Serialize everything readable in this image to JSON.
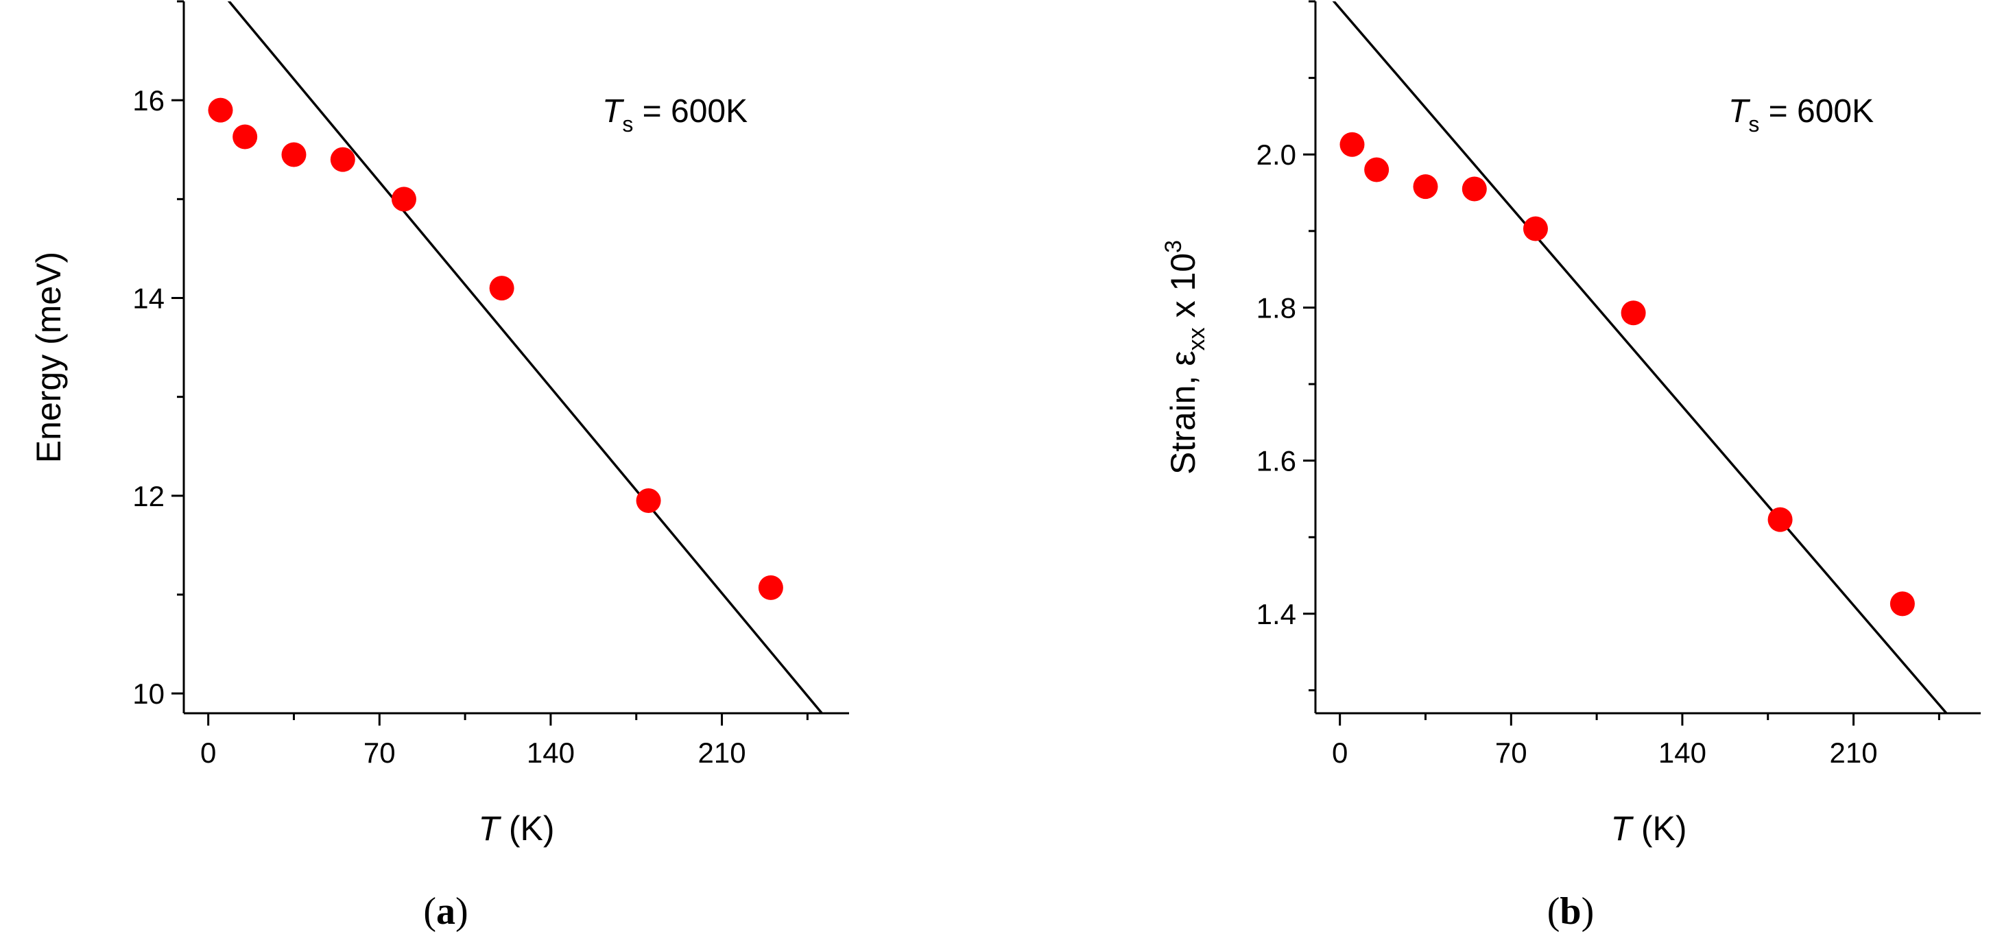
{
  "chart_data": [
    {
      "type": "scatter",
      "panel_label_open": "(",
      "panel_label_letter": "a",
      "panel_label_close": ")",
      "xlabel_var": "T",
      "xlabel_unit": " (K)",
      "ylabel": "Energy (meV)",
      "annotation": {
        "var": "T",
        "sub": "s",
        "rest": " = 600K"
      },
      "xlim": [
        -10,
        262
      ],
      "ylim": [
        9.8,
        17.0
      ],
      "xticks": [
        0,
        70,
        140,
        210
      ],
      "yticks": [
        10,
        12,
        14,
        16
      ],
      "x": [
        5,
        15,
        35,
        55,
        80,
        120,
        180,
        230
      ],
      "y": [
        15.9,
        15.63,
        15.45,
        15.4,
        15.0,
        14.1,
        11.95,
        11.07
      ],
      "fit_line": {
        "x": [
          -10,
          262
        ],
        "y": [
          17.55,
          9.47
        ]
      },
      "grid": false,
      "marker_color": "#ff0000",
      "line_color": "#000000"
    },
    {
      "type": "scatter",
      "panel_label_open": "(",
      "panel_label_letter": "b",
      "panel_label_close": ")",
      "xlabel_var": "T",
      "xlabel_unit": " (K)",
      "ylabel_main": "Strain, ε",
      "ylabel_sub": "xx",
      "ylabel_mid": " x 10",
      "ylabel_sup": "3",
      "annotation": {
        "var": "T",
        "sub": "s",
        "rest": " = 600K"
      },
      "xlim": [
        -10,
        262
      ],
      "ylim": [
        1.27,
        2.2
      ],
      "xticks": [
        0,
        70,
        140,
        210
      ],
      "yticks": [
        1.4,
        1.6,
        1.8,
        2.0
      ],
      "ytick_labels": [
        "1.4",
        "1.6",
        "1.8",
        "2.0"
      ],
      "x": [
        5,
        15,
        35,
        55,
        80,
        120,
        180,
        230
      ],
      "y": [
        2.013,
        1.98,
        1.958,
        1.955,
        1.903,
        1.793,
        1.523,
        1.413
      ],
      "fit_line": {
        "x": [
          -10,
          262
        ],
        "y": [
          2.228,
          1.218
        ]
      },
      "grid": false,
      "marker_color": "#ff0000",
      "line_color": "#000000"
    }
  ]
}
